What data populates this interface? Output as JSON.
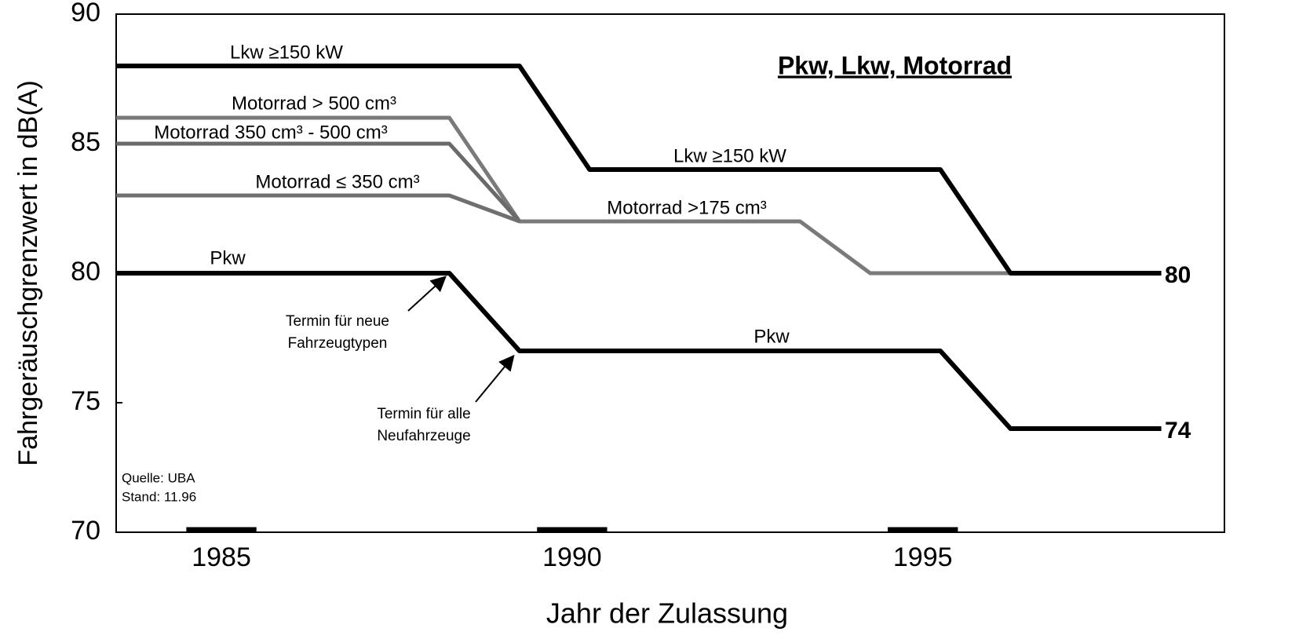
{
  "chart_data": {
    "type": "line",
    "title": "Pkw, Lkw, Motorrad",
    "xlabel": "Jahr der Zulassung",
    "ylabel": "Fahrgeräuschgrenzwert in dB(A)",
    "xlim": [
      1984,
      1999.8
    ],
    "xticks": [
      {
        "value": 1985.5,
        "label": "1985"
      },
      {
        "value": 1990.5,
        "label": "1990"
      },
      {
        "value": 1995.5,
        "label": "1995"
      }
    ],
    "ylim": [
      70,
      90
    ],
    "yticks": [
      70,
      75,
      80,
      85,
      90
    ],
    "grid": false,
    "series": [
      {
        "name": "Lkw ≥150 kW",
        "color": "#000000",
        "x": [
          1984,
          1989.75,
          1990.75,
          1995.75,
          1996.75,
          1998.9
        ],
        "values": [
          88,
          88,
          84,
          84,
          80,
          80
        ]
      },
      {
        "name": "Motorrad > 500 cm³",
        "color": "#7a7a7a",
        "x": [
          1984,
          1988.75,
          1989.75,
          1993.75,
          1994.75,
          1996.75
        ],
        "values": [
          86,
          86,
          82,
          82,
          80,
          80
        ]
      },
      {
        "name": "Motorrad 350 cm³ - 500 cm³",
        "color": "#6a6a6a",
        "x": [
          1984,
          1988.75,
          1989.75
        ],
        "values": [
          85,
          85,
          82
        ]
      },
      {
        "name": "Motorrad ≤ 350 cm³",
        "color": "#6f6f6f",
        "x": [
          1984,
          1988.75,
          1989.75
        ],
        "values": [
          83,
          83,
          82
        ]
      },
      {
        "name": "Pkw",
        "color": "#000000",
        "x": [
          1984,
          1988.75,
          1989.75,
          1995.75,
          1996.75,
          1998.9
        ],
        "values": [
          80,
          80,
          77,
          77,
          74,
          74
        ]
      }
    ],
    "annotations": [
      "Lkw ≥150 kW",
      "Motorrad >175 cm³",
      "Pkw",
      "Termin für neue",
      "Fahrzeugtypen",
      "Termin für alle",
      "Neufahrzeuge",
      "Quelle: UBA",
      "Stand: 11.96",
      "80",
      "74"
    ]
  }
}
